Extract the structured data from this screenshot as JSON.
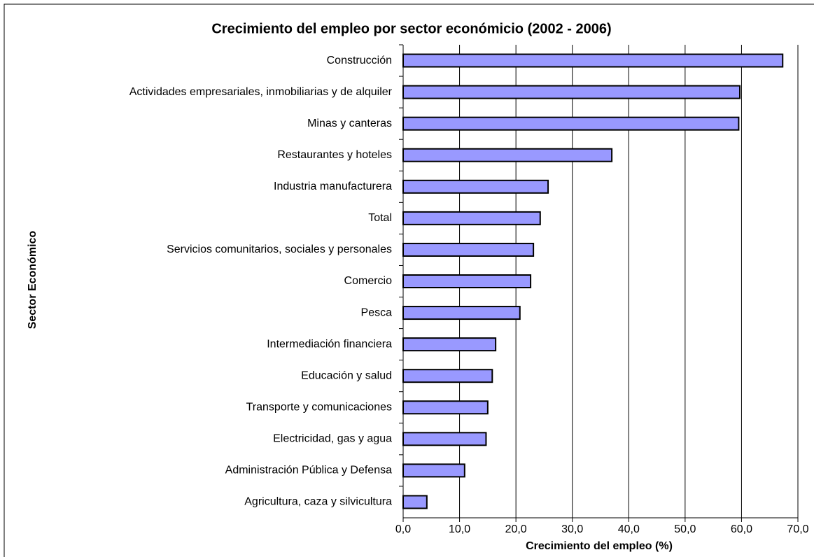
{
  "chart_data": {
    "type": "barh",
    "title": "Crecimiento del empleo por sector económicio (2002 - 2006)",
    "x_label": "Crecimiento del empleo (%)",
    "y_label": "Sector Económico",
    "categories": [
      "Construcción",
      "Actividades empresariales, inmobiliarias y de alquiler",
      "Minas y canteras",
      "Restaurantes y hoteles",
      "Industria manufacturera",
      "Total",
      "Servicios comunitarios, sociales y personales",
      "Comercio",
      "Pesca",
      "Intermediación financiera",
      "Educación y salud",
      "Transporte y comunicaciones",
      "Electricidad, gas y agua",
      "Administración Pública y Defensa",
      "Agricultura, caza y silvicultura"
    ],
    "values": [
      67.3,
      59.7,
      59.5,
      37.0,
      25.7,
      24.3,
      23.1,
      22.6,
      20.7,
      16.4,
      15.8,
      15.0,
      14.7,
      10.9,
      4.2
    ],
    "color": "#9999ff",
    "xlim": [
      0,
      70
    ],
    "xticks": [
      {
        "value": 0,
        "label": "0,0"
      },
      {
        "value": 10,
        "label": "10,0"
      },
      {
        "value": 20,
        "label": "20,0"
      },
      {
        "value": 30,
        "label": "30,0"
      },
      {
        "value": 40,
        "label": "40,0"
      },
      {
        "value": 50,
        "label": "50,0"
      },
      {
        "value": 60,
        "label": "60,0"
      },
      {
        "value": 70,
        "label": "70,0"
      }
    ],
    "grid": true
  }
}
